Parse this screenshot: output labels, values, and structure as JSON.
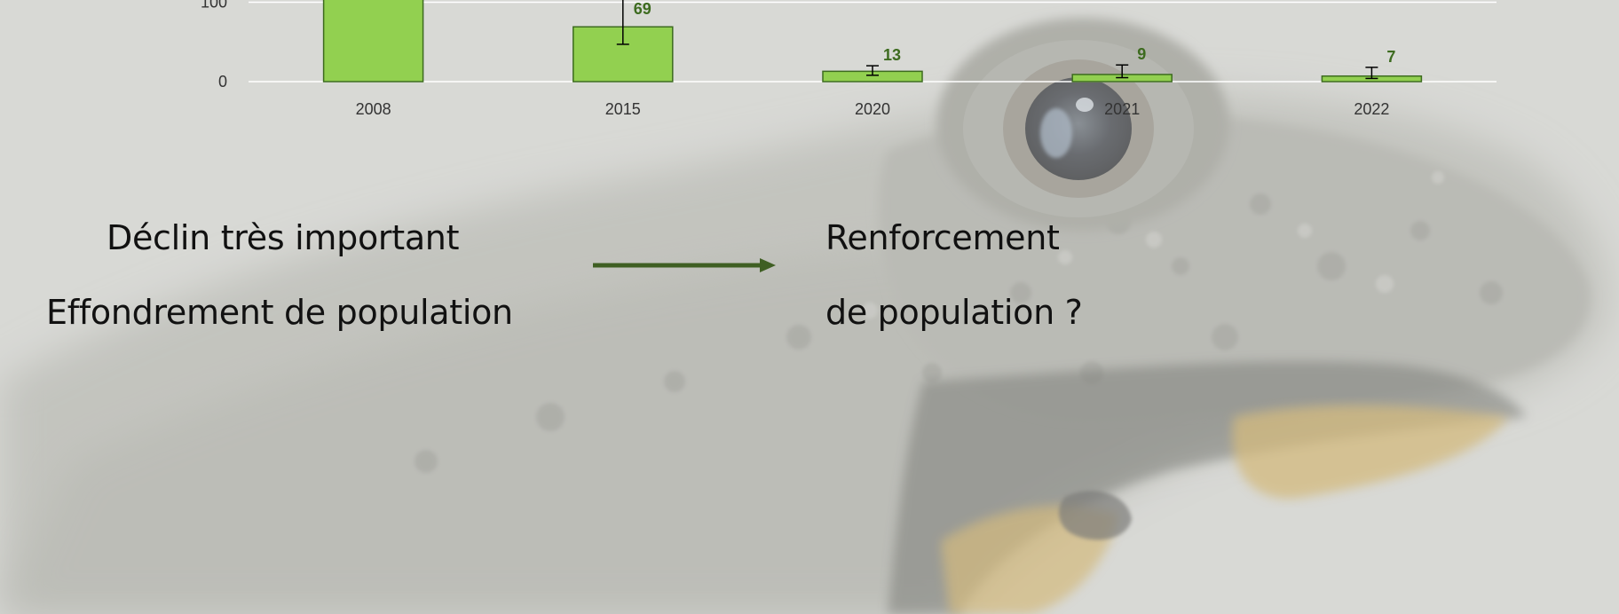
{
  "colors": {
    "bar_fill": "#92d050",
    "bar_stroke": "#3d6b1f",
    "data_label": "#3d6b1f",
    "arrow": "#3f5f23",
    "axis_line": "#ffffff"
  },
  "chart_data": {
    "type": "bar",
    "categories": [
      "2008",
      "2015",
      "2020",
      "2021",
      "2022"
    ],
    "values": [
      150,
      69,
      13,
      9,
      7
    ],
    "data_labels": [
      "",
      "69",
      "13",
      "9",
      "7"
    ],
    "error_bars": [
      {
        "low": null,
        "high": null
      },
      {
        "low": 47,
        "high": 104
      },
      {
        "low": 8,
        "high": 20
      },
      {
        "low": 5,
        "high": 21
      },
      {
        "low": 4,
        "high": 18
      }
    ],
    "y_ticks": [
      "0",
      "100"
    ],
    "ylim": [
      0,
      200
    ],
    "grid": true
  },
  "text": {
    "left_line1": "Déclin très important",
    "left_line2": "Effondrement de population",
    "right_line1": "Renforcement",
    "right_line2": "de population ?"
  },
  "background": {
    "image": "toad-photo"
  }
}
